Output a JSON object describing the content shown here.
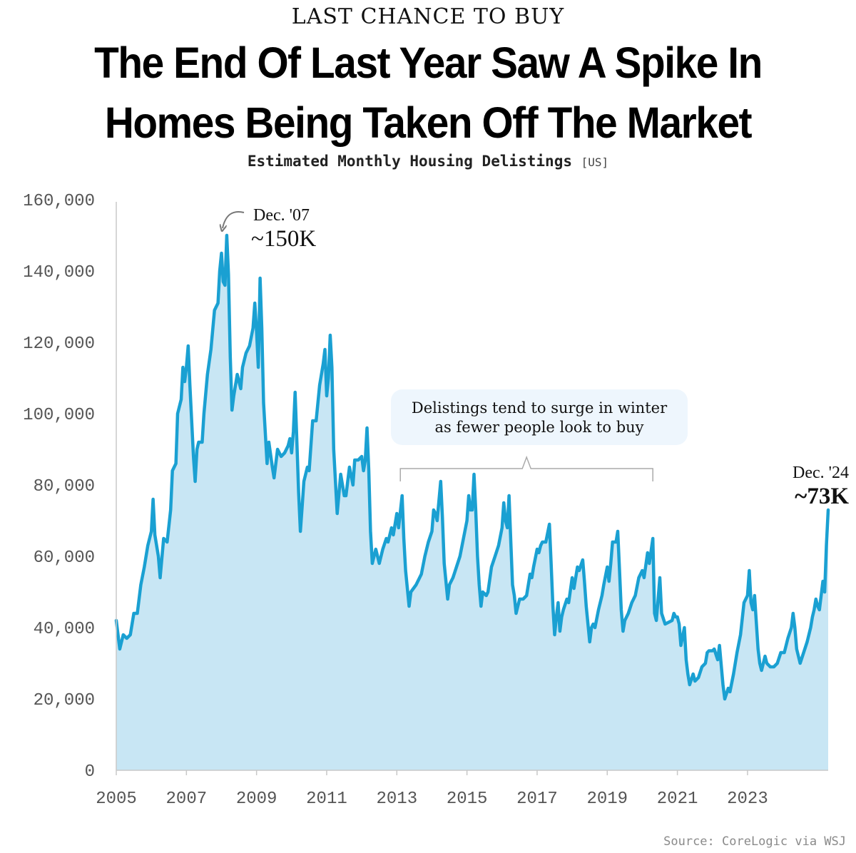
{
  "header": {
    "kicker": "LAST CHANCE TO BUY",
    "headline_line1": "The End Of Last Year Saw A Spike In",
    "headline_line2": "Homes Being Taken Off The Market",
    "subtitle": "Estimated Monthly Housing Delistings",
    "subtitle_tag": "[US]"
  },
  "source": "Source: CoreLogic via WSJ",
  "colors": {
    "line": "#1aa0d2",
    "fill": "#c8e6f4",
    "axis": "#c8c8c8",
    "note_bg": "#eef6fd"
  },
  "chart_data": {
    "type": "area",
    "title": "Estimated Monthly Housing Delistings [US]",
    "xlabel": "",
    "ylabel": "",
    "xlim": [
      2005,
      2025
    ],
    "ylim": [
      0,
      160000
    ],
    "y_ticks": [
      0,
      20000,
      40000,
      60000,
      80000,
      100000,
      120000,
      140000,
      160000
    ],
    "y_tick_labels": [
      "0",
      "20,000",
      "40,000",
      "60,000",
      "80,000",
      "100,000",
      "120,000",
      "140,000",
      "160,000"
    ],
    "x_ticks": [
      2005,
      2007,
      2009,
      2011,
      2013,
      2015,
      2017,
      2019,
      2021,
      2023
    ],
    "x_tick_labels": [
      "2005",
      "2007",
      "2009",
      "2011",
      "2013",
      "2015",
      "2017",
      "2019",
      "2021",
      "2023"
    ],
    "grid": false,
    "series": [
      {
        "name": "Delistings",
        "points": [
          [
            2005.0,
            42000
          ],
          [
            2005.1,
            34000
          ],
          [
            2005.2,
            38000
          ],
          [
            2005.3,
            37000
          ],
          [
            2005.4,
            38000
          ],
          [
            2005.5,
            44000
          ],
          [
            2005.6,
            44000
          ],
          [
            2005.7,
            52000
          ],
          [
            2005.8,
            57000
          ],
          [
            2005.9,
            63000
          ],
          [
            2006.0,
            67000
          ],
          [
            2006.05,
            76000
          ],
          [
            2006.1,
            66000
          ],
          [
            2006.2,
            60000
          ],
          [
            2006.25,
            54000
          ],
          [
            2006.35,
            65000
          ],
          [
            2006.45,
            64000
          ],
          [
            2006.55,
            73000
          ],
          [
            2006.6,
            84000
          ],
          [
            2006.7,
            86000
          ],
          [
            2006.75,
            100000
          ],
          [
            2006.85,
            104000
          ],
          [
            2006.9,
            113000
          ],
          [
            2006.95,
            109000
          ],
          [
            2007.0,
            113000
          ],
          [
            2007.05,
            119000
          ],
          [
            2007.1,
            108000
          ],
          [
            2007.2,
            88000
          ],
          [
            2007.25,
            81000
          ],
          [
            2007.3,
            90000
          ],
          [
            2007.35,
            92000
          ],
          [
            2007.45,
            92000
          ],
          [
            2007.5,
            100000
          ],
          [
            2007.6,
            111000
          ],
          [
            2007.7,
            118000
          ],
          [
            2007.8,
            129000
          ],
          [
            2007.9,
            131000
          ],
          [
            2007.95,
            140000
          ],
          [
            2008.0,
            145000
          ],
          [
            2008.05,
            137000
          ],
          [
            2008.1,
            136000
          ],
          [
            2008.15,
            150000
          ],
          [
            2008.2,
            139000
          ],
          [
            2008.25,
            116000
          ],
          [
            2008.3,
            101000
          ],
          [
            2008.35,
            105000
          ],
          [
            2008.45,
            111000
          ],
          [
            2008.55,
            107000
          ],
          [
            2008.6,
            113000
          ],
          [
            2008.7,
            117000
          ],
          [
            2008.8,
            119000
          ],
          [
            2008.9,
            124000
          ],
          [
            2008.95,
            131000
          ],
          [
            2009.0,
            123000
          ],
          [
            2009.05,
            113000
          ],
          [
            2009.1,
            138000
          ],
          [
            2009.15,
            124000
          ],
          [
            2009.2,
            103000
          ],
          [
            2009.3,
            86000
          ],
          [
            2009.35,
            92000
          ],
          [
            2009.45,
            85000
          ],
          [
            2009.5,
            82000
          ],
          [
            2009.6,
            90000
          ],
          [
            2009.7,
            88000
          ],
          [
            2009.8,
            89000
          ],
          [
            2009.9,
            91000
          ],
          [
            2009.95,
            93000
          ],
          [
            2010.0,
            89000
          ],
          [
            2010.05,
            95000
          ],
          [
            2010.1,
            106000
          ],
          [
            2010.15,
            92000
          ],
          [
            2010.2,
            78000
          ],
          [
            2010.25,
            67000
          ],
          [
            2010.3,
            74000
          ],
          [
            2010.35,
            81000
          ],
          [
            2010.45,
            85000
          ],
          [
            2010.5,
            84000
          ],
          [
            2010.6,
            98000
          ],
          [
            2010.7,
            98000
          ],
          [
            2010.8,
            108000
          ],
          [
            2010.9,
            114000
          ],
          [
            2010.95,
            118000
          ],
          [
            2011.0,
            105000
          ],
          [
            2011.05,
            110000
          ],
          [
            2011.1,
            122000
          ],
          [
            2011.15,
            113000
          ],
          [
            2011.2,
            90000
          ],
          [
            2011.3,
            72000
          ],
          [
            2011.4,
            83000
          ],
          [
            2011.5,
            77000
          ],
          [
            2011.55,
            77000
          ],
          [
            2011.65,
            85000
          ],
          [
            2011.75,
            80000
          ],
          [
            2011.8,
            87000
          ],
          [
            2011.9,
            87000
          ],
          [
            2011.95,
            87500
          ],
          [
            2012.0,
            88000
          ],
          [
            2012.05,
            84000
          ],
          [
            2012.1,
            87000
          ],
          [
            2012.15,
            96000
          ],
          [
            2012.2,
            84000
          ],
          [
            2012.25,
            67000
          ],
          [
            2012.3,
            58000
          ],
          [
            2012.4,
            62000
          ],
          [
            2012.5,
            58000
          ],
          [
            2012.6,
            62000
          ],
          [
            2012.7,
            65000
          ],
          [
            2012.75,
            64000
          ],
          [
            2012.85,
            68000
          ],
          [
            2012.9,
            66000
          ],
          [
            2013.0,
            72000
          ],
          [
            2013.05,
            68000
          ],
          [
            2013.15,
            77000
          ],
          [
            2013.2,
            65000
          ],
          [
            2013.25,
            56000
          ],
          [
            2013.35,
            46000
          ],
          [
            2013.4,
            50000
          ],
          [
            2013.55,
            52000
          ],
          [
            2013.7,
            55000
          ],
          [
            2013.8,
            60000
          ],
          [
            2013.9,
            64000
          ],
          [
            2014.0,
            67000
          ],
          [
            2014.05,
            73000
          ],
          [
            2014.1,
            72000
          ],
          [
            2014.15,
            70000
          ],
          [
            2014.25,
            81000
          ],
          [
            2014.3,
            71000
          ],
          [
            2014.35,
            58000
          ],
          [
            2014.45,
            48000
          ],
          [
            2014.5,
            52000
          ],
          [
            2014.6,
            54000
          ],
          [
            2014.7,
            57000
          ],
          [
            2014.8,
            60000
          ],
          [
            2014.9,
            65000
          ],
          [
            2015.0,
            70000
          ],
          [
            2015.05,
            77000
          ],
          [
            2015.1,
            73000
          ],
          [
            2015.15,
            73000
          ],
          [
            2015.2,
            83000
          ],
          [
            2015.25,
            73000
          ],
          [
            2015.3,
            60000
          ],
          [
            2015.35,
            52000
          ],
          [
            2015.4,
            46000
          ],
          [
            2015.45,
            50000
          ],
          [
            2015.55,
            49000
          ],
          [
            2015.6,
            50000
          ],
          [
            2015.7,
            57000
          ],
          [
            2015.8,
            60000
          ],
          [
            2015.9,
            63000
          ],
          [
            2016.0,
            68000
          ],
          [
            2016.05,
            75000
          ],
          [
            2016.1,
            70000
          ],
          [
            2016.15,
            68000
          ],
          [
            2016.2,
            77000
          ],
          [
            2016.25,
            64000
          ],
          [
            2016.3,
            52000
          ],
          [
            2016.35,
            49000
          ],
          [
            2016.4,
            44000
          ],
          [
            2016.5,
            48000
          ],
          [
            2016.6,
            48000
          ],
          [
            2016.7,
            49000
          ],
          [
            2016.8,
            55000
          ],
          [
            2016.85,
            54000
          ],
          [
            2016.9,
            57000
          ],
          [
            2017.0,
            62000
          ],
          [
            2017.05,
            61000
          ],
          [
            2017.1,
            63000
          ],
          [
            2017.15,
            64000
          ],
          [
            2017.25,
            64000
          ],
          [
            2017.35,
            69000
          ],
          [
            2017.4,
            58000
          ],
          [
            2017.45,
            46000
          ],
          [
            2017.5,
            38000
          ],
          [
            2017.55,
            43000
          ],
          [
            2017.6,
            47000
          ],
          [
            2017.65,
            39000
          ],
          [
            2017.7,
            43000
          ],
          [
            2017.75,
            45000
          ],
          [
            2017.85,
            48000
          ],
          [
            2017.9,
            47000
          ],
          [
            2018.0,
            54000
          ],
          [
            2018.05,
            51000
          ],
          [
            2018.15,
            57000
          ],
          [
            2018.2,
            56000
          ],
          [
            2018.3,
            59000
          ],
          [
            2018.35,
            53000
          ],
          [
            2018.4,
            46000
          ],
          [
            2018.5,
            36000
          ],
          [
            2018.55,
            40000
          ],
          [
            2018.6,
            41000
          ],
          [
            2018.65,
            40000
          ],
          [
            2018.75,
            45000
          ],
          [
            2018.85,
            49000
          ],
          [
            2018.9,
            52000
          ],
          [
            2019.0,
            57000
          ],
          [
            2019.05,
            53000
          ],
          [
            2019.1,
            58000
          ],
          [
            2019.15,
            64000
          ],
          [
            2019.25,
            64000
          ],
          [
            2019.3,
            67000
          ],
          [
            2019.35,
            56000
          ],
          [
            2019.4,
            45000
          ],
          [
            2019.45,
            39000
          ],
          [
            2019.5,
            42000
          ],
          [
            2019.6,
            44000
          ],
          [
            2019.7,
            47000
          ],
          [
            2019.8,
            49000
          ],
          [
            2019.9,
            54000
          ],
          [
            2020.0,
            56000
          ],
          [
            2020.05,
            54000
          ],
          [
            2020.15,
            61000
          ],
          [
            2020.2,
            58000
          ],
          [
            2020.3,
            65000
          ],
          [
            2020.35,
            44000
          ],
          [
            2020.4,
            42000
          ],
          [
            2020.45,
            48000
          ],
          [
            2020.5,
            54000
          ],
          [
            2020.55,
            44000
          ],
          [
            2020.65,
            41000
          ],
          [
            2020.75,
            41500
          ],
          [
            2020.85,
            42000
          ],
          [
            2020.9,
            44000
          ],
          [
            2020.95,
            43000
          ],
          [
            2021.0,
            43000
          ],
          [
            2021.05,
            41000
          ],
          [
            2021.1,
            35000
          ],
          [
            2021.2,
            40000
          ],
          [
            2021.25,
            31000
          ],
          [
            2021.3,
            27000
          ],
          [
            2021.35,
            24000
          ],
          [
            2021.45,
            27000
          ],
          [
            2021.5,
            25000
          ],
          [
            2021.6,
            26000
          ],
          [
            2021.7,
            29000
          ],
          [
            2021.8,
            30000
          ],
          [
            2021.85,
            33000
          ],
          [
            2021.9,
            33500
          ],
          [
            2022.0,
            33500
          ],
          [
            2022.05,
            34000
          ],
          [
            2022.15,
            31000
          ],
          [
            2022.2,
            35000
          ],
          [
            2022.3,
            24000
          ],
          [
            2022.35,
            20000
          ],
          [
            2022.45,
            23000
          ],
          [
            2022.5,
            22000
          ],
          [
            2022.6,
            27000
          ],
          [
            2022.7,
            33000
          ],
          [
            2022.8,
            38000
          ],
          [
            2022.9,
            47000
          ],
          [
            2023.0,
            49000
          ],
          [
            2023.05,
            56000
          ],
          [
            2023.1,
            47000
          ],
          [
            2023.15,
            45000
          ],
          [
            2023.2,
            49000
          ],
          [
            2023.3,
            34000
          ],
          [
            2023.35,
            30000
          ],
          [
            2023.4,
            28000
          ],
          [
            2023.5,
            32000
          ],
          [
            2023.55,
            30000
          ],
          [
            2023.65,
            29000
          ],
          [
            2023.75,
            29000
          ],
          [
            2023.85,
            30000
          ],
          [
            2023.95,
            33000
          ],
          [
            2024.05,
            33000
          ],
          [
            2024.15,
            37000
          ],
          [
            2024.25,
            40000
          ],
          [
            2024.3,
            44000
          ],
          [
            2024.35,
            40000
          ],
          [
            2024.4,
            34000
          ],
          [
            2024.5,
            30000
          ],
          [
            2024.6,
            33000
          ],
          [
            2024.7,
            36000
          ],
          [
            2024.8,
            40000
          ],
          [
            2024.85,
            43000
          ],
          [
            2024.9,
            45000
          ],
          [
            2024.95,
            48000
          ],
          [
            2025.0,
            46000
          ],
          [
            2025.05,
            45000
          ],
          [
            2025.15,
            53000
          ],
          [
            2025.2,
            50000
          ],
          [
            2025.25,
            63000
          ],
          [
            2025.3,
            73000
          ]
        ]
      }
    ],
    "annotations": {
      "peak": {
        "label": "Dec. '07",
        "value_label": "~150K",
        "x": 2008.15,
        "y": 150000
      },
      "latest": {
        "label": "Dec. '24",
        "value_label": "~73K",
        "x": 2025.3,
        "y": 73000
      },
      "note": {
        "line1": "Delistings tend to surge in winter",
        "line2": "as fewer people look to buy",
        "bracket_x_range": [
          2013.1,
          2020.3
        ]
      }
    }
  }
}
